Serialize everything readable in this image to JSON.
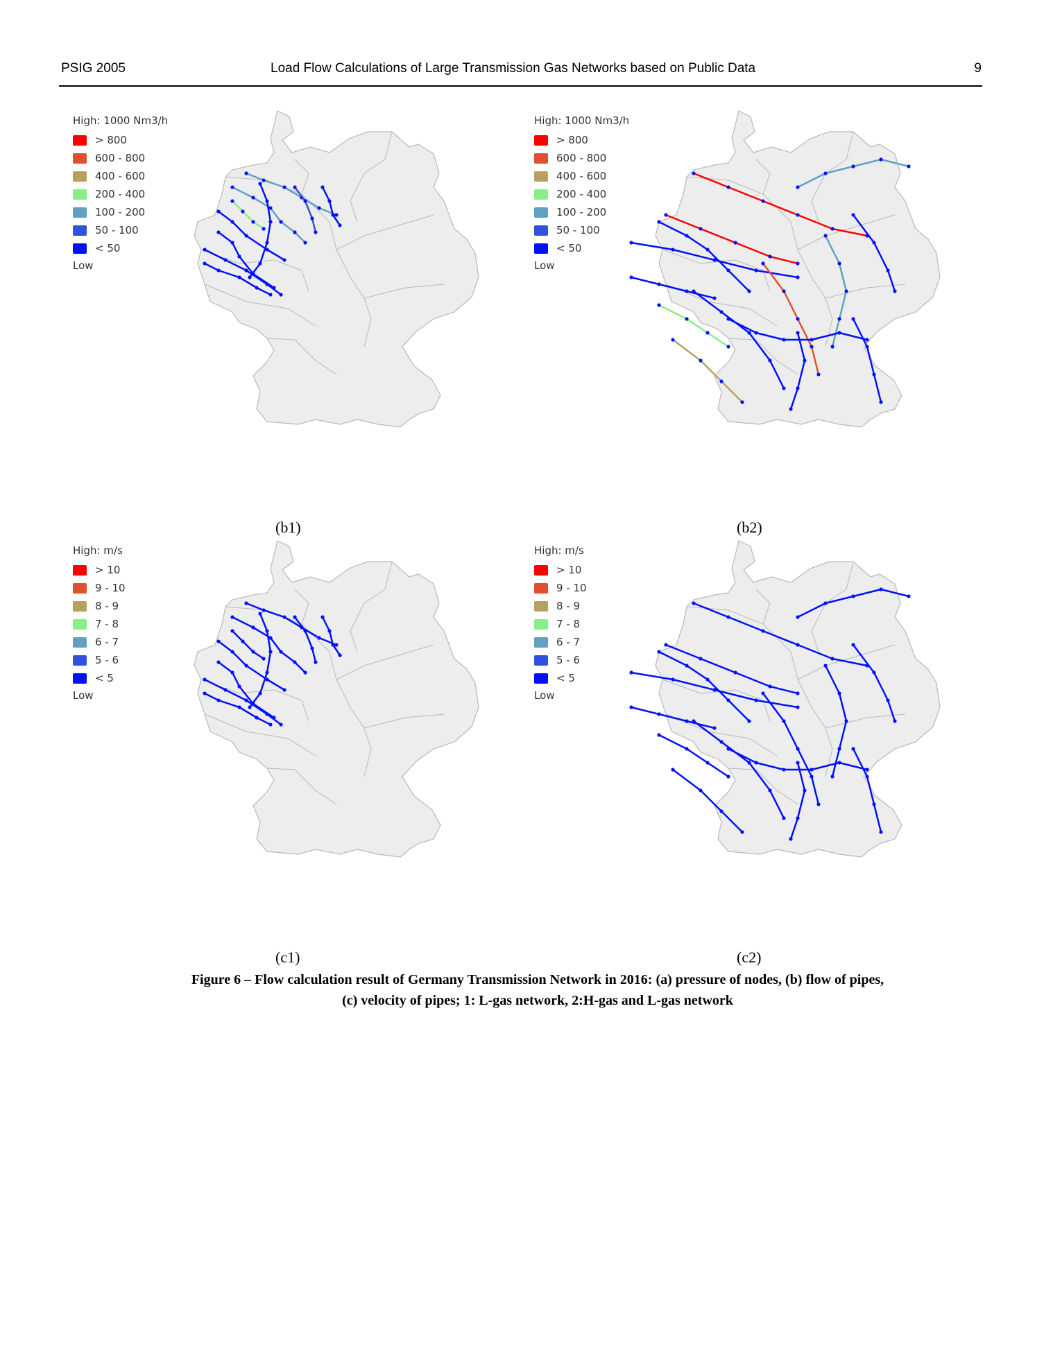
{
  "header": {
    "left": "PSIG 2005",
    "center": "Load Flow Calculations of Large Transmission Gas Networks based on Public Data",
    "page_number": "9"
  },
  "colors": {
    "map_fill": "#ededed",
    "map_border": "#b8b8b8",
    "class_colors": [
      "#ff0000",
      "#e05030",
      "#b8a060",
      "#88ee88",
      "#60a0c0",
      "#3050e0",
      "#0010ff"
    ]
  },
  "panels": {
    "b1": {
      "label": "(b1)",
      "legend": {
        "title": "High: 1000 Nm3/h",
        "items": [
          "> 800",
          "600 - 800",
          "400 - 600",
          "200 - 400",
          "100 - 200",
          "50 - 100",
          "< 50"
        ],
        "low": "Low"
      }
    },
    "b2": {
      "label": "(b2)",
      "legend": {
        "title": "High: 1000 Nm3/h",
        "items": [
          "> 800",
          "600 - 800",
          "400 - 600",
          "200 - 400",
          "100 - 200",
          "50 - 100",
          "< 50"
        ],
        "low": "Low"
      }
    },
    "c1": {
      "label": "(c1)",
      "legend": {
        "title": "High: m/s",
        "items": [
          "> 10",
          "9 - 10",
          "8 - 9",
          "7 - 8",
          "6 - 7",
          "5 - 6",
          "< 5"
        ],
        "low": "Low"
      }
    },
    "c2": {
      "label": "(c2)",
      "legend": {
        "title": "High: m/s",
        "items": [
          "> 10",
          "9 - 10",
          "8 - 9",
          "7 - 8",
          "6 - 7",
          "5 - 6",
          "< 5"
        ],
        "low": "Low"
      }
    }
  },
  "caption": {
    "line1": "Figure 6 – Flow calculation result of Germany Transmission Network in 2016: (a) pressure of nodes, (b) flow of pipes,",
    "line2": "(c) velocity of pipes; 1: L-gas network, 2:H-gas and L-gas network"
  }
}
